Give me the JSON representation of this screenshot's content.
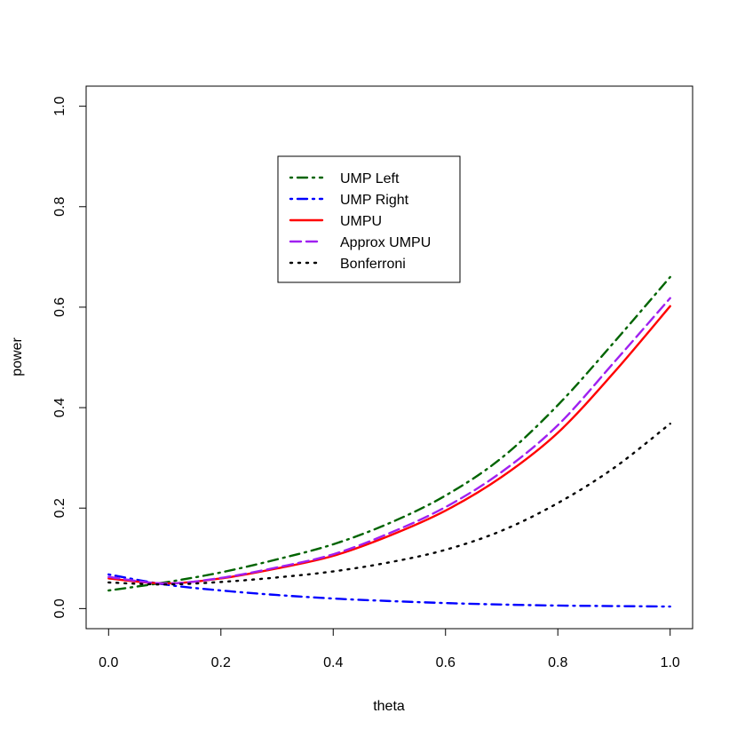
{
  "chart_data": {
    "type": "line",
    "title": "",
    "xlabel": "theta",
    "ylabel": "power",
    "xlim": [
      -0.04,
      1.04
    ],
    "ylim": [
      -0.04,
      1.04
    ],
    "xticks": [
      0.0,
      0.2,
      0.4,
      0.6,
      0.8,
      1.0
    ],
    "xtick_labels": [
      "0.0",
      "0.2",
      "0.4",
      "0.6",
      "0.8",
      "1.0"
    ],
    "yticks": [
      0.0,
      0.2,
      0.4,
      0.6,
      0.8,
      1.0
    ],
    "ytick_labels": [
      "0.0",
      "0.2",
      "0.4",
      "0.6",
      "0.8",
      "1.0"
    ],
    "grid": false,
    "legend_position": "top-center",
    "x": [
      0.0,
      0.1,
      0.2,
      0.3,
      0.4,
      0.5,
      0.6,
      0.7,
      0.8,
      0.9,
      1.0
    ],
    "series": [
      {
        "name": "UMP Left",
        "color": "#006400",
        "line_style": "dotdash",
        "values": [
          0.036,
          0.052,
          0.072,
          0.098,
          0.128,
          0.17,
          0.225,
          0.3,
          0.405,
          0.53,
          0.66
        ]
      },
      {
        "name": "UMP Right",
        "color": "#0000ff",
        "line_style": "dotdash",
        "values": [
          0.068,
          0.048,
          0.036,
          0.027,
          0.02,
          0.015,
          0.011,
          0.008,
          0.006,
          0.005,
          0.004
        ]
      },
      {
        "name": "UMPU",
        "color": "#ff0000",
        "line_style": "solid",
        "values": [
          0.06,
          0.05,
          0.06,
          0.08,
          0.105,
          0.145,
          0.195,
          0.262,
          0.35,
          0.47,
          0.602
        ]
      },
      {
        "name": "Approx UMPU",
        "color": "#a020f0",
        "line_style": "dashed",
        "values": [
          0.063,
          0.05,
          0.061,
          0.082,
          0.108,
          0.15,
          0.202,
          0.272,
          0.365,
          0.49,
          0.618
        ]
      },
      {
        "name": "Bonferroni",
        "color": "#000000",
        "line_style": "dotted",
        "values": [
          0.052,
          0.048,
          0.053,
          0.062,
          0.074,
          0.092,
          0.117,
          0.155,
          0.21,
          0.28,
          0.368
        ]
      }
    ]
  }
}
